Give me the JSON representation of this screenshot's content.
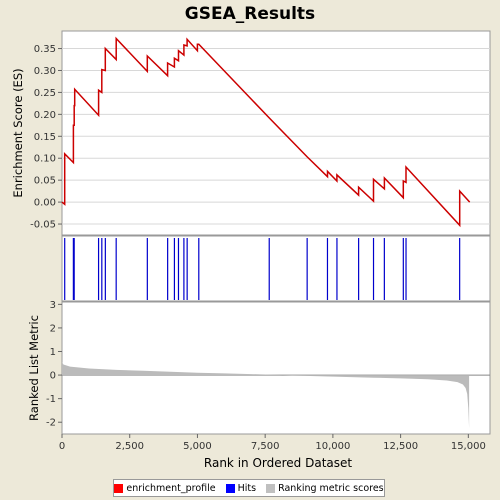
{
  "title": "GSEA_Results",
  "chart_data": {
    "type": "line",
    "title": "GSEA_Results",
    "xlabel": "Rank in Ordered Dataset",
    "xlim": [
      0,
      15800
    ],
    "x_ticks": [
      "0",
      "2,500",
      "5,000",
      "7,500",
      "10,000",
      "12,500",
      "15,000"
    ],
    "x_tick_values": [
      0,
      2500,
      5000,
      7500,
      10000,
      12500,
      15000
    ],
    "enrichment_panel": {
      "ylabel": "Enrichment Score (ES)",
      "ylim": [
        -0.075,
        0.39
      ],
      "y_ticks": [
        "-0.05",
        "0.00",
        "0.05",
        "0.10",
        "0.15",
        "0.20",
        "0.25",
        "0.30",
        "0.35"
      ],
      "y_tick_values": [
        -0.05,
        0,
        0.05,
        0.1,
        0.15,
        0.2,
        0.25,
        0.3,
        0.35
      ],
      "series": [
        {
          "name": "enrichment_profile",
          "color": "#cc0000",
          "x": [
            0,
            100,
            100,
            420,
            420,
            450,
            450,
            470,
            470,
            1350,
            1350,
            1470,
            1470,
            1600,
            1600,
            2000,
            2000,
            3150,
            3150,
            3900,
            3900,
            4150,
            4150,
            4300,
            4300,
            4500,
            4500,
            4620,
            4620,
            5000,
            5000,
            5050,
            5050,
            7650,
            7650,
            9050,
            9050,
            9800,
            9800,
            10150,
            10150,
            10950,
            10950,
            11500,
            11500,
            11900,
            11900,
            12600,
            12600,
            12700,
            12700,
            14680,
            14680,
            15050
          ],
          "y": [
            0,
            -0.005,
            0.11,
            0.09,
            0.175,
            0.175,
            0.22,
            0.22,
            0.257,
            0.198,
            0.255,
            0.25,
            0.302,
            0.3,
            0.35,
            0.325,
            0.373,
            0.298,
            0.333,
            0.288,
            0.317,
            0.308,
            0.328,
            0.322,
            0.345,
            0.335,
            0.358,
            0.356,
            0.371,
            0.345,
            0.36,
            0.36,
            0.36,
            0.192,
            0.192,
            0.103,
            0.103,
            0.058,
            0.07,
            0.048,
            0.062,
            0.016,
            0.034,
            0.002,
            0.052,
            0.03,
            0.055,
            0.01,
            0.048,
            0.045,
            0.08,
            -0.053,
            0.025,
            0.0
          ]
        }
      ]
    },
    "hits_panel": {
      "name": "Hits",
      "color": "#0000cc",
      "positions": [
        100,
        420,
        450,
        1350,
        1470,
        1600,
        2000,
        3150,
        3900,
        4150,
        4300,
        4500,
        4620,
        5050,
        7650,
        9050,
        9800,
        10150,
        10950,
        11500,
        11900,
        12600,
        12700,
        14680
      ]
    },
    "ranking_panel": {
      "name": "Ranking metric scores",
      "ylabel": "Ranked List Metric",
      "color": "#bbbbbb",
      "ylim": [
        -2.5,
        3.1
      ],
      "y_ticks": [
        "-2",
        "-1",
        "0",
        "1",
        "2",
        "3"
      ],
      "y_tick_values": [
        -2,
        -1,
        0,
        1,
        2,
        3
      ],
      "x": [
        0,
        50,
        300,
        1000,
        2000,
        3000,
        4000,
        5000,
        6000,
        7000,
        7800,
        8500,
        9500,
        10500,
        11500,
        12500,
        13500,
        14200,
        14600,
        14800,
        14900,
        14960,
        15000,
        15030
      ],
      "values": [
        0.55,
        0.45,
        0.36,
        0.28,
        0.22,
        0.18,
        0.14,
        0.1,
        0.07,
        0.04,
        0.01,
        -0.02,
        -0.05,
        -0.08,
        -0.11,
        -0.14,
        -0.18,
        -0.23,
        -0.3,
        -0.4,
        -0.55,
        -0.8,
        -1.4,
        -2.25
      ]
    },
    "legend": {
      "placement": "bottom",
      "entries": [
        {
          "label": "enrichment_profile",
          "color": "#ff0000"
        },
        {
          "label": "Hits",
          "color": "#0000ff"
        },
        {
          "label": "Ranking metric scores",
          "color": "#c0c0c0"
        }
      ]
    }
  }
}
